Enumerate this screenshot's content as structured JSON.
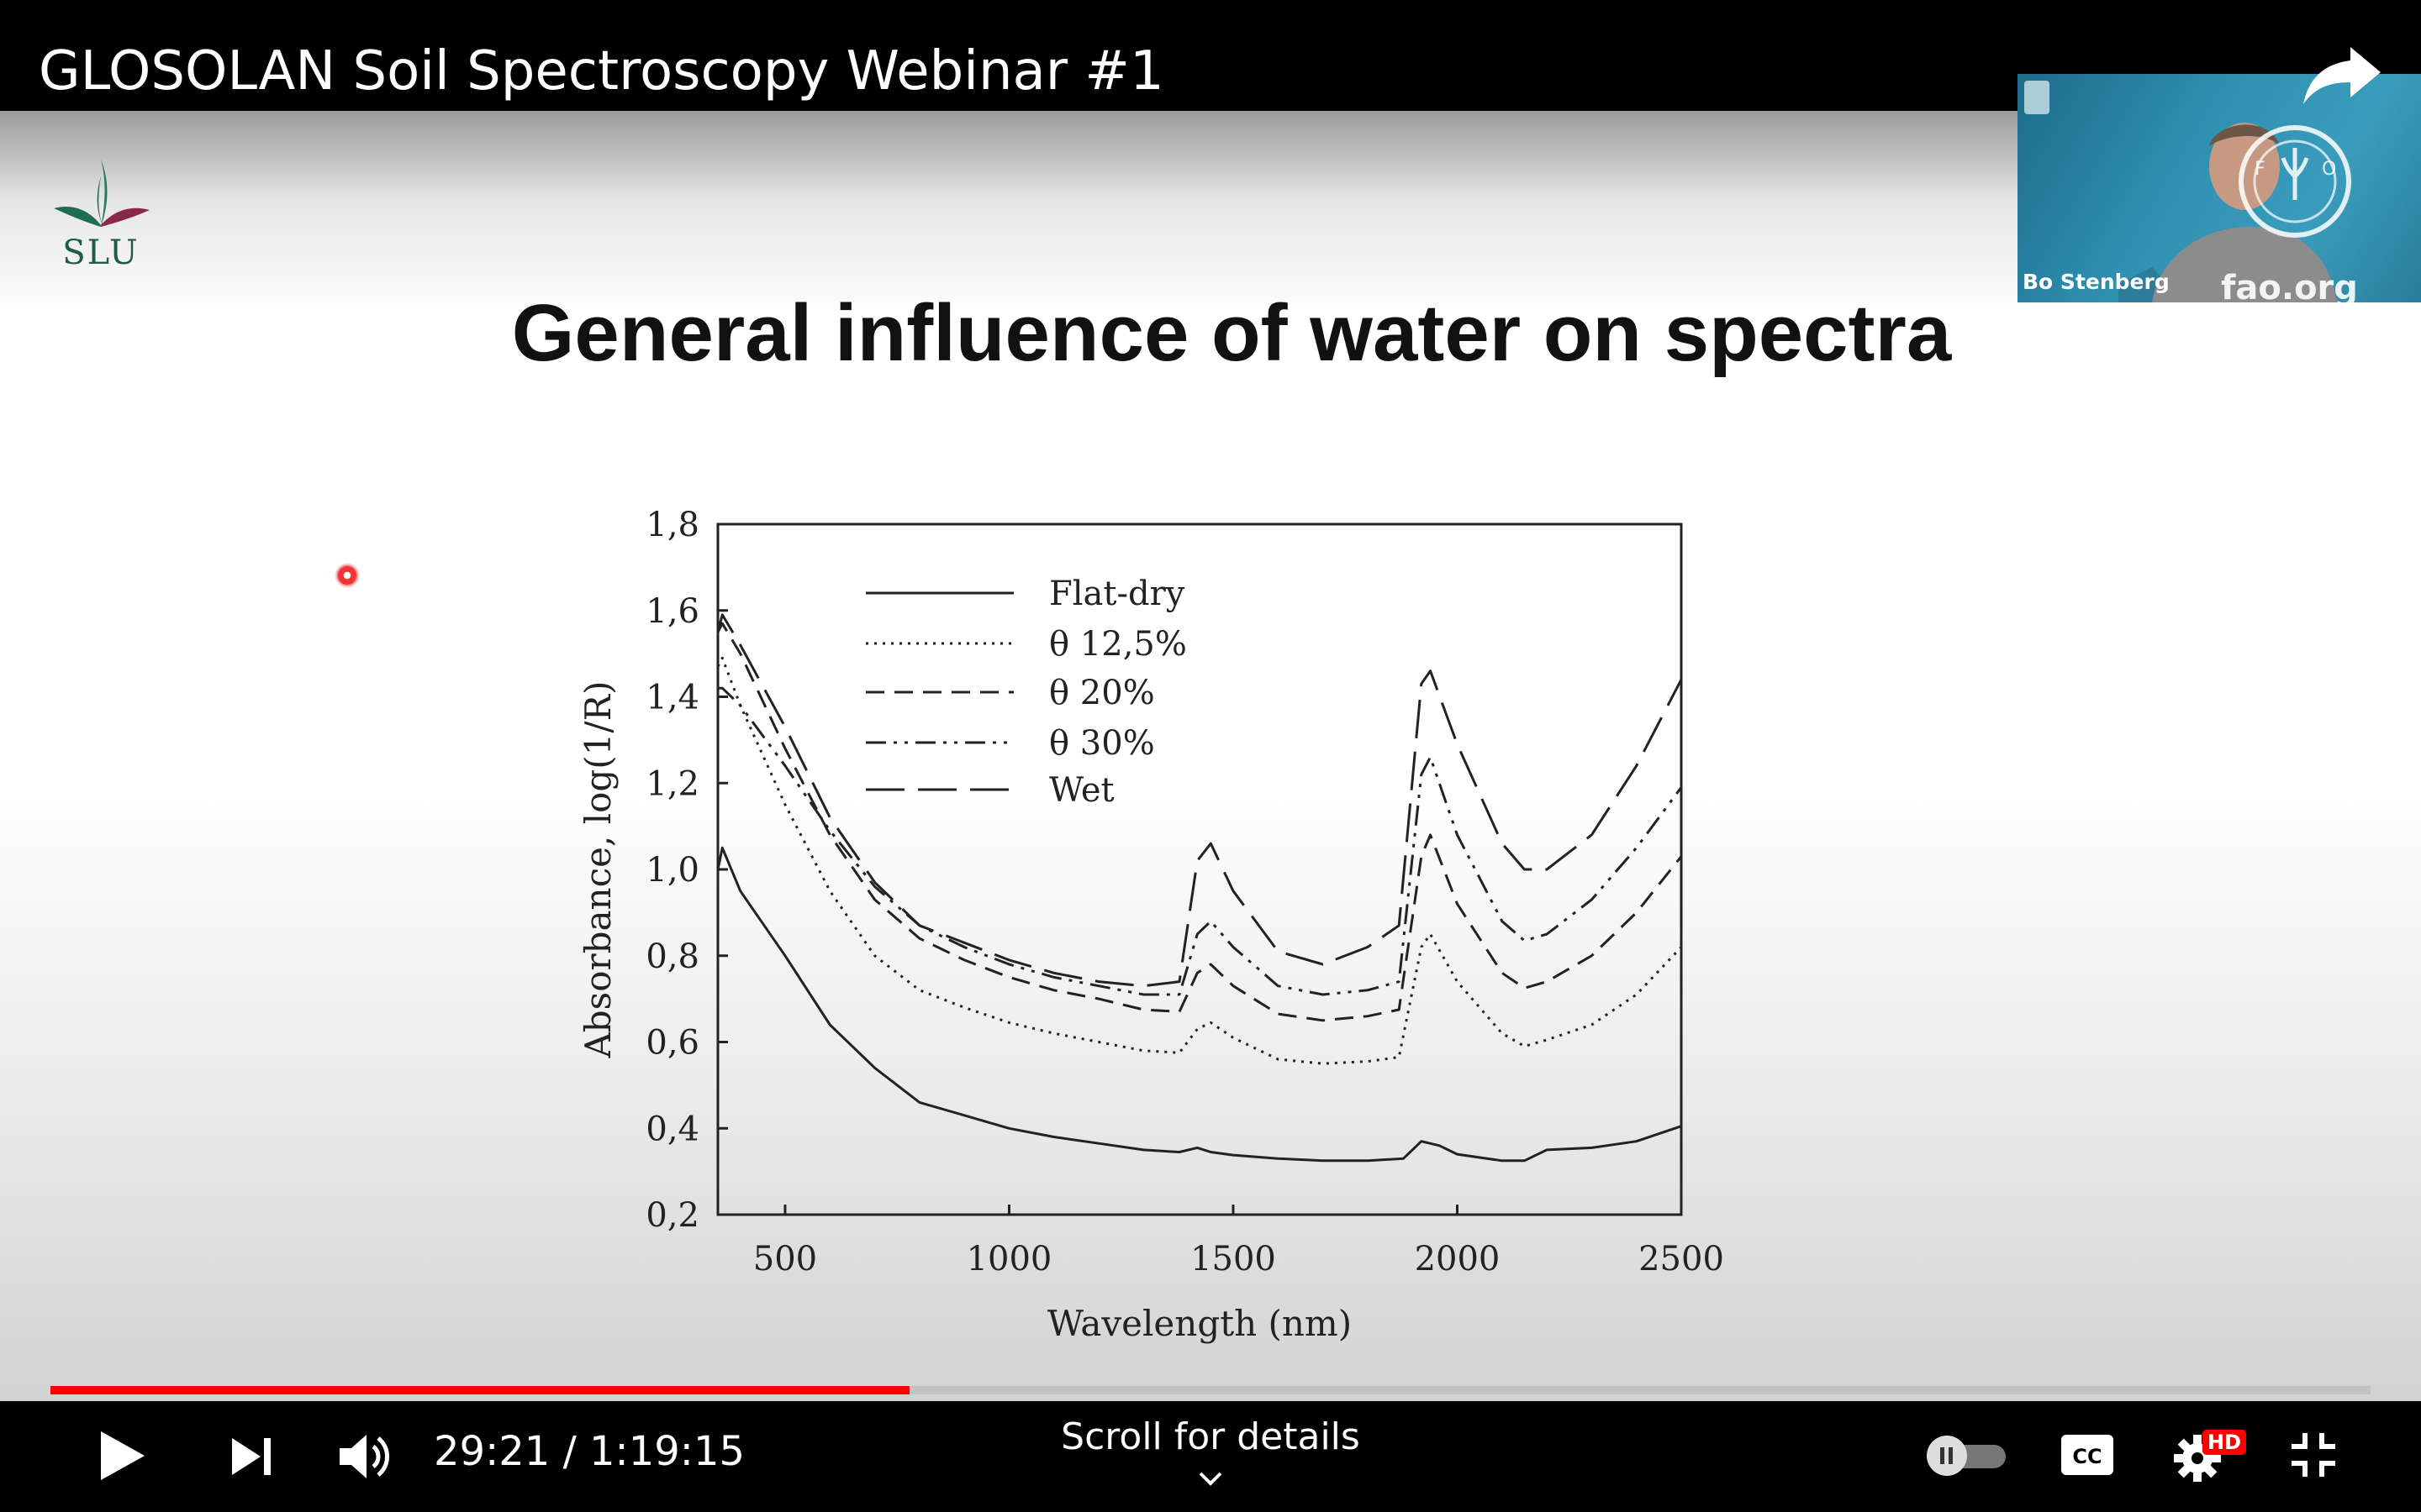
{
  "video": {
    "title": "GLOSOLAN Soil Spectroscopy Webinar #1",
    "current_time": "29:21",
    "duration": "1:19:15",
    "time_display": "29:21 / 1:19:15",
    "progress": 0.3704,
    "scroll_hint": "Scroll for details",
    "quality_badge": "HD",
    "accent_color": "#ff0000"
  },
  "slide": {
    "logo_text": "SLU",
    "title": "General influence of water on spectra"
  },
  "webcam": {
    "speaker_name": "Bo Stenberg",
    "site": "fao.org",
    "seal_letters": "FIAT PANIS"
  },
  "icons": {
    "share": "share-arrow-icon",
    "play": "play-icon",
    "next": "next-track-icon",
    "volume": "volume-icon",
    "autoplay": "autoplay-toggle-icon",
    "captions": "cc-icon",
    "settings": "gear-icon",
    "exit_fullscreen": "exit-fullscreen-icon",
    "scroll": "chevron-down-icon"
  },
  "chart_data": {
    "type": "line",
    "xlabel": "Wavelength (nm)",
    "ylabel": "Absorbance, log(1/R)",
    "xlim": [
      350,
      2500
    ],
    "ylim": [
      0.2,
      1.8
    ],
    "x_ticks": [
      500,
      1000,
      1500,
      2000,
      2500
    ],
    "x_tick_labels": [
      "500",
      "1000",
      "1500",
      "2000",
      "2500"
    ],
    "y_ticks": [
      0.2,
      0.4,
      0.6,
      0.8,
      1.0,
      1.2,
      1.4,
      1.6,
      1.8
    ],
    "y_tick_labels": [
      "0,2",
      "0,4",
      "0,6",
      "0,8",
      "1,0",
      "1,2",
      "1,4",
      "1,6",
      "1,8"
    ],
    "grid": false,
    "legend_position": "top-left",
    "series": [
      {
        "name": "Flat-dry",
        "style": "solid",
        "points": [
          [
            350,
            1.0
          ],
          [
            360,
            1.05
          ],
          [
            400,
            0.95
          ],
          [
            500,
            0.8
          ],
          [
            600,
            0.64
          ],
          [
            700,
            0.54
          ],
          [
            800,
            0.46
          ],
          [
            900,
            0.43
          ],
          [
            1000,
            0.4
          ],
          [
            1100,
            0.38
          ],
          [
            1200,
            0.365
          ],
          [
            1300,
            0.35
          ],
          [
            1380,
            0.345
          ],
          [
            1420,
            0.355
          ],
          [
            1450,
            0.345
          ],
          [
            1500,
            0.338
          ],
          [
            1600,
            0.33
          ],
          [
            1700,
            0.325
          ],
          [
            1800,
            0.325
          ],
          [
            1880,
            0.33
          ],
          [
            1920,
            0.37
          ],
          [
            1960,
            0.36
          ],
          [
            2000,
            0.34
          ],
          [
            2100,
            0.325
          ],
          [
            2150,
            0.325
          ],
          [
            2200,
            0.35
          ],
          [
            2300,
            0.355
          ],
          [
            2400,
            0.37
          ],
          [
            2500,
            0.405
          ]
        ]
      },
      {
        "name": "θ 12,5%",
        "style": "dotted",
        "points": [
          [
            350,
            1.47
          ],
          [
            360,
            1.49
          ],
          [
            400,
            1.38
          ],
          [
            500,
            1.15
          ],
          [
            600,
            0.95
          ],
          [
            700,
            0.8
          ],
          [
            800,
            0.72
          ],
          [
            900,
            0.68
          ],
          [
            1000,
            0.645
          ],
          [
            1100,
            0.62
          ],
          [
            1200,
            0.6
          ],
          [
            1300,
            0.58
          ],
          [
            1380,
            0.575
          ],
          [
            1420,
            0.63
          ],
          [
            1450,
            0.645
          ],
          [
            1500,
            0.61
          ],
          [
            1600,
            0.56
          ],
          [
            1700,
            0.55
          ],
          [
            1800,
            0.555
          ],
          [
            1870,
            0.565
          ],
          [
            1920,
            0.82
          ],
          [
            1940,
            0.85
          ],
          [
            2000,
            0.74
          ],
          [
            2100,
            0.62
          ],
          [
            2150,
            0.59
          ],
          [
            2200,
            0.605
          ],
          [
            2300,
            0.64
          ],
          [
            2400,
            0.71
          ],
          [
            2500,
            0.82
          ]
        ]
      },
      {
        "name": "θ 20%",
        "style": "dashed",
        "points": [
          [
            350,
            1.55
          ],
          [
            360,
            1.57
          ],
          [
            400,
            1.5
          ],
          [
            500,
            1.28
          ],
          [
            600,
            1.08
          ],
          [
            700,
            0.93
          ],
          [
            800,
            0.84
          ],
          [
            900,
            0.79
          ],
          [
            1000,
            0.75
          ],
          [
            1100,
            0.72
          ],
          [
            1200,
            0.7
          ],
          [
            1300,
            0.675
          ],
          [
            1380,
            0.67
          ],
          [
            1420,
            0.76
          ],
          [
            1450,
            0.78
          ],
          [
            1500,
            0.73
          ],
          [
            1600,
            0.665
          ],
          [
            1700,
            0.65
          ],
          [
            1800,
            0.66
          ],
          [
            1870,
            0.675
          ],
          [
            1920,
            1.03
          ],
          [
            1940,
            1.08
          ],
          [
            2000,
            0.92
          ],
          [
            2100,
            0.76
          ],
          [
            2150,
            0.725
          ],
          [
            2200,
            0.74
          ],
          [
            2300,
            0.8
          ],
          [
            2400,
            0.9
          ],
          [
            2500,
            1.03
          ]
        ]
      },
      {
        "name": "θ 30%",
        "style": "dash-dot",
        "points": [
          [
            350,
            1.42
          ],
          [
            360,
            1.42
          ],
          [
            400,
            1.38
          ],
          [
            500,
            1.24
          ],
          [
            600,
            1.09
          ],
          [
            700,
            0.96
          ],
          [
            800,
            0.87
          ],
          [
            900,
            0.82
          ],
          [
            1000,
            0.78
          ],
          [
            1100,
            0.75
          ],
          [
            1200,
            0.73
          ],
          [
            1300,
            0.71
          ],
          [
            1380,
            0.71
          ],
          [
            1420,
            0.85
          ],
          [
            1450,
            0.88
          ],
          [
            1500,
            0.82
          ],
          [
            1600,
            0.73
          ],
          [
            1700,
            0.71
          ],
          [
            1800,
            0.72
          ],
          [
            1870,
            0.74
          ],
          [
            1920,
            1.22
          ],
          [
            1940,
            1.26
          ],
          [
            2000,
            1.08
          ],
          [
            2100,
            0.88
          ],
          [
            2150,
            0.835
          ],
          [
            2200,
            0.85
          ],
          [
            2300,
            0.93
          ],
          [
            2400,
            1.05
          ],
          [
            2500,
            1.19
          ]
        ]
      },
      {
        "name": "Wet",
        "style": "long-dash",
        "points": [
          [
            350,
            1.55
          ],
          [
            360,
            1.59
          ],
          [
            400,
            1.52
          ],
          [
            500,
            1.33
          ],
          [
            600,
            1.12
          ],
          [
            700,
            0.97
          ],
          [
            800,
            0.87
          ],
          [
            900,
            0.83
          ],
          [
            1000,
            0.79
          ],
          [
            1100,
            0.76
          ],
          [
            1200,
            0.74
          ],
          [
            1300,
            0.73
          ],
          [
            1380,
            0.74
          ],
          [
            1420,
            1.02
          ],
          [
            1450,
            1.06
          ],
          [
            1500,
            0.95
          ],
          [
            1600,
            0.81
          ],
          [
            1700,
            0.78
          ],
          [
            1800,
            0.82
          ],
          [
            1870,
            0.87
          ],
          [
            1920,
            1.43
          ],
          [
            1940,
            1.46
          ],
          [
            2000,
            1.29
          ],
          [
            2100,
            1.06
          ],
          [
            2150,
            1.0
          ],
          [
            2200,
            1.0
          ],
          [
            2300,
            1.08
          ],
          [
            2400,
            1.24
          ],
          [
            2500,
            1.44
          ]
        ]
      }
    ]
  }
}
